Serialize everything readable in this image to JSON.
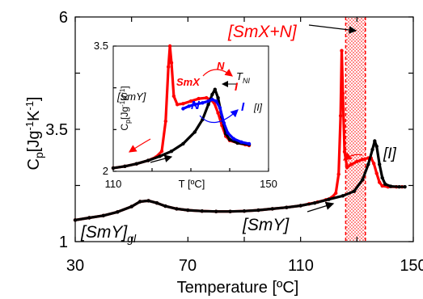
{
  "chart_data": [
    {
      "type": "line",
      "xlabel": "Temperature [ºC]",
      "ylabel_main": "C",
      "ylabel_sub": "p",
      "ylabel_unit": "[Jg",
      "ylabel_exp1": "-1",
      "ylabel_mid": "K",
      "ylabel_exp2": "-1",
      "ylabel_end": "]",
      "xlim": [
        30,
        150
      ],
      "ylim": [
        1,
        6
      ],
      "x_ticks": [
        "30",
        "70",
        "110",
        "150"
      ],
      "y_ticks": [
        "1",
        "3.5",
        "6"
      ],
      "series": [
        {
          "color": "#ff0000",
          "points": [
            [
              30,
              1.48
            ],
            [
              35,
              1.53
            ],
            [
              40,
              1.58
            ],
            [
              45,
              1.66
            ],
            [
              50,
              1.78
            ],
            [
              53,
              1.89
            ],
            [
              56,
              1.91
            ],
            [
              59,
              1.86
            ],
            [
              62,
              1.79
            ],
            [
              66,
              1.73
            ],
            [
              70,
              1.7
            ],
            [
              75,
              1.68
            ],
            [
              80,
              1.67
            ],
            [
              85,
              1.67
            ],
            [
              90,
              1.68
            ],
            [
              95,
              1.7
            ],
            [
              100,
              1.73
            ],
            [
              105,
              1.76
            ],
            [
              110,
              1.8
            ],
            [
              113,
              1.84
            ],
            [
              116,
              1.88
            ],
            [
              119,
              1.93
            ],
            [
              121,
              1.98
            ],
            [
              122.5,
              2.08
            ],
            [
              123.5,
              2.5
            ],
            [
              124.2,
              3.8
            ],
            [
              124.6,
              5.25
            ],
            [
              125.0,
              4.3
            ],
            [
              125.6,
              3.0
            ],
            [
              126.5,
              2.65
            ],
            [
              128,
              2.72
            ],
            [
              130,
              2.78
            ],
            [
              132,
              2.83
            ],
            [
              134,
              2.86
            ],
            [
              135,
              2.86
            ],
            [
              136,
              2.74
            ],
            [
              137,
              2.52
            ],
            [
              138,
              2.32
            ],
            [
              139,
              2.24
            ],
            [
              141,
              2.22
            ],
            [
              144,
              2.22
            ],
            [
              146,
              2.22
            ]
          ]
        },
        {
          "color": "#000000",
          "points": [
            [
              30,
              1.48
            ],
            [
              35,
              1.53
            ],
            [
              40,
              1.58
            ],
            [
              45,
              1.66
            ],
            [
              50,
              1.78
            ],
            [
              53,
              1.89
            ],
            [
              56,
              1.91
            ],
            [
              59,
              1.86
            ],
            [
              62,
              1.79
            ],
            [
              66,
              1.73
            ],
            [
              70,
              1.7
            ],
            [
              75,
              1.68
            ],
            [
              80,
              1.67
            ],
            [
              85,
              1.67
            ],
            [
              90,
              1.68
            ],
            [
              95,
              1.7
            ],
            [
              100,
              1.73
            ],
            [
              105,
              1.76
            ],
            [
              110,
              1.8
            ],
            [
              115,
              1.86
            ],
            [
              120,
              1.94
            ],
            [
              125,
              2.02
            ],
            [
              129,
              2.12
            ],
            [
              132,
              2.38
            ],
            [
              134,
              2.72
            ],
            [
              135.5,
              3.05
            ],
            [
              136.3,
              3.24
            ],
            [
              137,
              3.12
            ],
            [
              138,
              2.72
            ],
            [
              139,
              2.42
            ],
            [
              140,
              2.28
            ],
            [
              142,
              2.23
            ],
            [
              145,
              2.22
            ],
            [
              147,
              2.22
            ]
          ]
        }
      ],
      "band": {
        "x": [
          126,
          133
        ],
        "color": "#ff0000"
      },
      "annotations": {
        "smx_n": "[SmX+N]",
        "i_label": "[I]",
        "smy": "[SmY]",
        "smy_gl": "[SmY]",
        "smy_gl_sub": "gl"
      }
    },
    {
      "type": "line",
      "inset": true,
      "xlabel": "T [ºC]",
      "ylabel_main": "C",
      "ylabel_sub": "p",
      "ylabel_unit": "[Jg",
      "ylabel_exp1": "-1",
      "ylabel_mid": "K",
      "ylabel_exp2": "-1",
      "ylabel_end": "]",
      "xlim": [
        110,
        150
      ],
      "ylim": [
        2,
        3.5
      ],
      "x_ticks": [
        "110",
        "150"
      ],
      "y_ticks": [
        "2",
        "3.5"
      ],
      "series": [
        {
          "color": "#ff0000",
          "points": [
            [
              110,
              2.04
            ],
            [
              113,
              2.06
            ],
            [
              116,
              2.09
            ],
            [
              119,
              2.13
            ],
            [
              121,
              2.17
            ],
            [
              122.5,
              2.24
            ],
            [
              123.5,
              2.6
            ],
            [
              124.2,
              3.25
            ],
            [
              124.6,
              3.5
            ],
            [
              125.0,
              3.3
            ],
            [
              125.6,
              2.9
            ],
            [
              126.5,
              2.8
            ],
            [
              128,
              2.81
            ],
            [
              130,
              2.84
            ],
            [
              132,
              2.87
            ],
            [
              134,
              2.88
            ],
            [
              135,
              2.86
            ],
            [
              136,
              2.82
            ],
            [
              137,
              2.7
            ],
            [
              138,
              2.55
            ],
            [
              139,
              2.42
            ],
            [
              140,
              2.37
            ],
            [
              142,
              2.34
            ],
            [
              144,
              2.32
            ],
            [
              145,
              2.31
            ]
          ]
        },
        {
          "color": "#000000",
          "points": [
            [
              110,
              2.04
            ],
            [
              113,
              2.06
            ],
            [
              116,
              2.09
            ],
            [
              119,
              2.13
            ],
            [
              122,
              2.18
            ],
            [
              125,
              2.24
            ],
            [
              128,
              2.33
            ],
            [
              131,
              2.47
            ],
            [
              133,
              2.62
            ],
            [
              134.5,
              2.8
            ],
            [
              135.5,
              2.92
            ],
            [
              136.2,
              2.98
            ],
            [
              137,
              2.88
            ],
            [
              138,
              2.65
            ],
            [
              139,
              2.45
            ],
            [
              140,
              2.38
            ],
            [
              142,
              2.34
            ],
            [
              145,
              2.32
            ]
          ]
        },
        {
          "color": "#0000ff",
          "points": [
            [
              128,
              2.75
            ],
            [
              129.5,
              2.78
            ],
            [
              131,
              2.8
            ],
            [
              133,
              2.82
            ],
            [
              134.5,
              2.84
            ],
            [
              135.5,
              2.86
            ],
            [
              136.5,
              2.84
            ],
            [
              137.5,
              2.76
            ],
            [
              138.5,
              2.58
            ],
            [
              139.5,
              2.46
            ],
            [
              141,
              2.39
            ],
            [
              143,
              2.35
            ],
            [
              145,
              2.33
            ]
          ]
        }
      ],
      "annotations": {
        "smx": "SmX",
        "n_red": "N",
        "i_red": "I",
        "tni_main": "T",
        "tni_sub": "NI",
        "smy": "[SmY]",
        "n_blue": "N",
        "i_blue": "I",
        "i_bracket": "[I]"
      }
    }
  ]
}
